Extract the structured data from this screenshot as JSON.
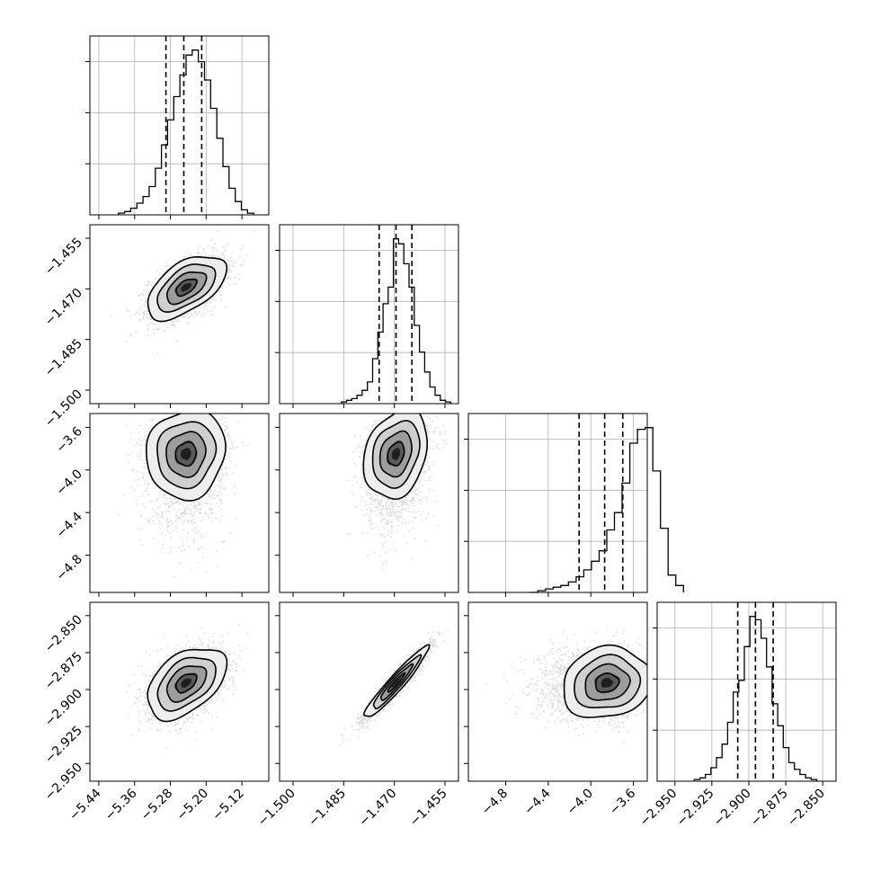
{
  "chart_data": {
    "type": "corner",
    "grid": true,
    "parameters": [
      {
        "range": [
          -5.46,
          -5.06
        ],
        "ticks": [
          -5.44,
          -5.36,
          -5.28,
          -5.2,
          -5.12
        ],
        "tick_labels": [
          "−5.44",
          "−5.36",
          "−5.28",
          "−5.20",
          "−5.12"
        ],
        "mean": -5.245,
        "sd": 0.042,
        "quantiles": [
          -5.29,
          -5.25,
          -5.21
        ],
        "hist": [
          1,
          2,
          4,
          7,
          11,
          17,
          28,
          42,
          57,
          71,
          84,
          96,
          99,
          92,
          81,
          64,
          46,
          29,
          16,
          8,
          3,
          1
        ]
      },
      {
        "range": [
          -1.504,
          -1.451
        ],
        "ticks": [
          -1.5,
          -1.485,
          -1.47,
          -1.455
        ],
        "tick_labels": [
          "−1.500",
          "−1.485",
          "−1.470",
          "−1.455"
        ],
        "mean": -1.4695,
        "sd": 0.0045,
        "quantiles": [
          -1.4745,
          -1.4695,
          -1.4648
        ],
        "hist": [
          1,
          2,
          3,
          5,
          8,
          13,
          27,
          43,
          60,
          70,
          99,
          96,
          84,
          70,
          47,
          31,
          19,
          10,
          5,
          2,
          1
        ]
      },
      {
        "range": [
          -5.15,
          -3.47
        ],
        "ticks": [
          -4.8,
          -4.4,
          -4.0,
          -3.6
        ],
        "tick_labels": [
          "−4.8",
          "−4.4",
          "−4.0",
          "−3.6"
        ],
        "mean": -3.85,
        "sd": 0.2,
        "quantiles": [
          -4.11,
          -3.87,
          -3.7
        ],
        "hist": [
          0,
          1,
          2,
          3,
          4,
          6,
          9,
          13,
          18,
          24,
          36,
          46,
          63,
          86,
          94,
          95,
          70,
          37,
          10,
          4
        ]
      },
      {
        "range": [
          -2.962,
          -2.841
        ],
        "ticks": [
          -2.95,
          -2.925,
          -2.9,
          -2.875,
          -2.85
        ],
        "tick_labels": [
          "−2.950",
          "−2.925",
          "−2.900",
          "−2.875",
          "−2.850"
        ],
        "mean": -2.8955,
        "sd": 0.0115,
        "quantiles": [
          -2.9075,
          -2.8955,
          -2.8835
        ],
        "hist": [
          1,
          2,
          4,
          8,
          14,
          22,
          35,
          53,
          60,
          80,
          98,
          96,
          85,
          68,
          46,
          33,
          20,
          11,
          7,
          4,
          2,
          1
        ]
      }
    ],
    "pairs": [
      {
        "row": 1,
        "col": 0,
        "corr": 0.55
      },
      {
        "row": 2,
        "col": 0,
        "corr": 0.08
      },
      {
        "row": 2,
        "col": 1,
        "corr": 0.25
      },
      {
        "row": 3,
        "col": 0,
        "corr": 0.45
      },
      {
        "row": 3,
        "col": 1,
        "corr": 0.95
      },
      {
        "row": 3,
        "col": 2,
        "corr": 0.12
      }
    ]
  }
}
